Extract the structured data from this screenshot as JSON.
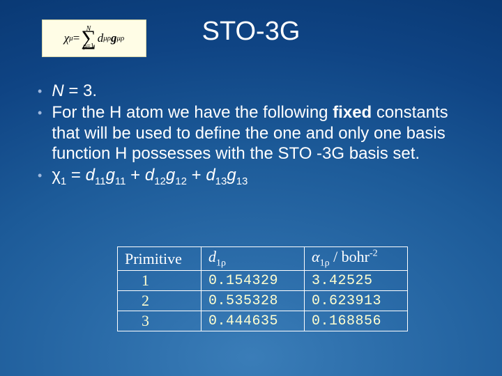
{
  "title": "STO-3G",
  "formula": {
    "chi": "χ",
    "mu": "μ",
    "equals": " = ",
    "N": "N",
    "rho_eq": "ρ=1",
    "d": "d",
    "murho": "μρ",
    "g": "g",
    "murho2": "μρ"
  },
  "bullets": {
    "b1_N": "N",
    "b1_rest": " = 3.",
    "b2_a": "For the H atom we have the following ",
    "b2_fixed": "fixed",
    "b2_b": " constants that will be used to define the one and only one basis function H possesses with the STO -3G basis set.",
    "b3_chi": "χ",
    "b3_1": "1",
    "b3_eq": " = ",
    "b3_d": "d",
    "b3_11": "11",
    "b3_g": "g",
    "b3_12": "12",
    "b3_13": "13",
    "b3_plus": " + "
  },
  "table": {
    "head_prim": "Primitive",
    "head_d_d": "d",
    "head_d_sub": "1ρ",
    "head_a_a": "α",
    "head_a_sub": "1ρ",
    "head_a_unit": " / bohr",
    "head_a_sup": "-2",
    "rows": [
      {
        "p": "1",
        "d": "0.154329",
        "a": "3.42525"
      },
      {
        "p": "2",
        "d": "0.535328",
        "a": "0.623913"
      },
      {
        "p": "3",
        "d": "0.444635",
        "a": "0.168856"
      }
    ]
  }
}
